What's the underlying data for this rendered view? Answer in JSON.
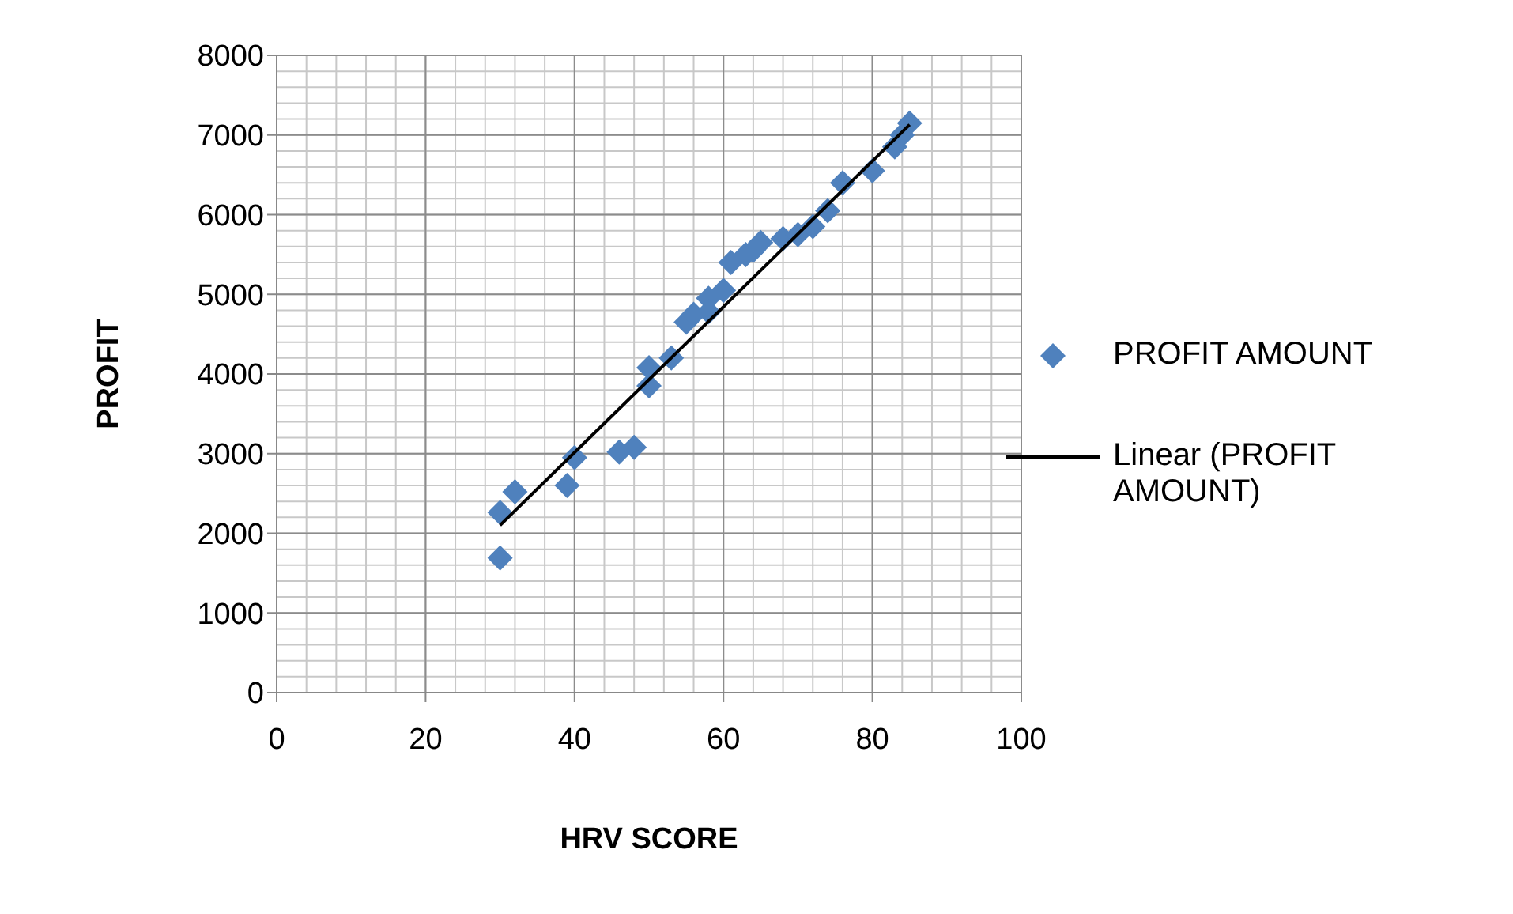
{
  "chart_data": {
    "type": "scatter",
    "xlabel": "HRV SCORE",
    "ylabel": "PROFIT",
    "xlim": [
      0,
      100
    ],
    "xticks": [
      0,
      20,
      40,
      60,
      80,
      100
    ],
    "ylim": [
      0,
      8000
    ],
    "yticks": [
      0,
      1000,
      2000,
      3000,
      4000,
      5000,
      6000,
      7000,
      8000
    ],
    "grid": true,
    "legend": "right",
    "marker": "diamond",
    "series": [
      {
        "name": "PROFIT AMOUNT",
        "color": "#4f81bd",
        "x": [
          30,
          30,
          32,
          39,
          40,
          46,
          48,
          50,
          50,
          53,
          55,
          56,
          58,
          58,
          60,
          61,
          63,
          64,
          65,
          68,
          70,
          72,
          74,
          76,
          80,
          83,
          84,
          85
        ],
        "values": [
          1690,
          2260,
          2520,
          2600,
          2950,
          3020,
          3080,
          3850,
          4080,
          4200,
          4650,
          4750,
          4950,
          4780,
          5050,
          5400,
          5500,
          5550,
          5650,
          5700,
          5750,
          5850,
          6050,
          6400,
          6550,
          6850,
          7000,
          7150
        ]
      },
      {
        "name": "Linear (PROFIT AMOUNT)",
        "type": "line",
        "color": "#000000",
        "line_style": "solid",
        "marker": "none",
        "x": [
          30,
          85
        ],
        "values": [
          2100,
          7130
        ]
      }
    ]
  }
}
